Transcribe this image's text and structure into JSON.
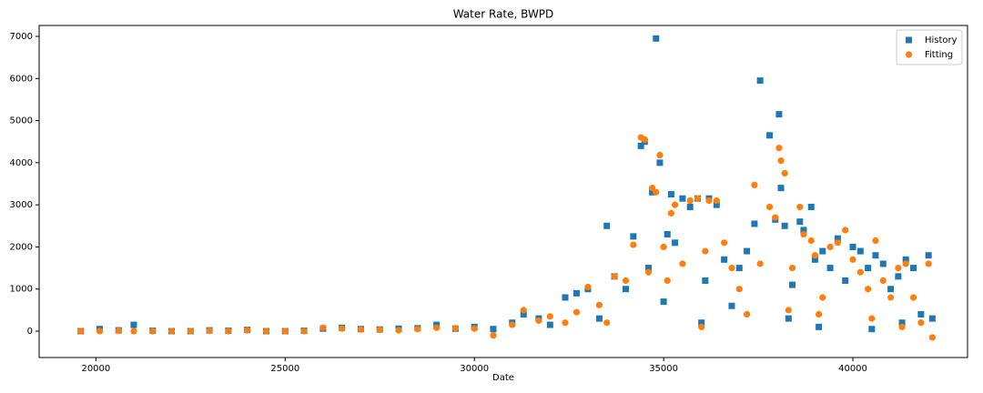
{
  "chart_data": {
    "type": "scatter",
    "title": "Water Rate, BWPD",
    "x_label": "Date",
    "x": [
      19600,
      20100,
      20600,
      21000,
      21500,
      22000,
      22500,
      23000,
      23500,
      24000,
      24500,
      25000,
      25500,
      26000,
      26500,
      27000,
      27500,
      28000,
      28500,
      29000,
      29500,
      30000,
      30500,
      31000,
      31300,
      31700,
      32000,
      32400,
      32700,
      33000,
      33300,
      33500,
      33700,
      34000,
      34200,
      34400,
      34500,
      34600,
      34700,
      34800,
      34900,
      35000,
      35100,
      35200,
      35300,
      35500,
      35700,
      35900,
      36000,
      36100,
      36200,
      36400,
      36600,
      36800,
      37000,
      37200,
      37400,
      37550,
      37800,
      37950,
      38050,
      38100,
      38200,
      38300,
      38400,
      38600,
      38700,
      38900,
      39000,
      39100,
      39200,
      39400,
      39600,
      39800,
      40000,
      40200,
      40400,
      40500,
      40600,
      40800,
      41000,
      41200,
      41300,
      41400,
      41600,
      41800,
      42000,
      42100
    ],
    "series": [
      {
        "name": "History",
        "color": "#1f77b4",
        "marker": "square",
        "values": [
          0,
          50,
          20,
          150,
          10,
          0,
          0,
          20,
          10,
          30,
          0,
          0,
          10,
          60,
          80,
          50,
          40,
          60,
          70,
          150,
          60,
          100,
          50,
          200,
          400,
          300,
          150,
          800,
          900,
          1000,
          300,
          2500,
          1300,
          1000,
          2250,
          4400,
          4500,
          1500,
          3300,
          6950,
          4000,
          700,
          2300,
          3250,
          2100,
          3150,
          2950,
          3150,
          200,
          1200,
          3150,
          3000,
          1700,
          600,
          1500,
          1900,
          2550,
          5950,
          4650,
          2650,
          5150,
          3400,
          2500,
          300,
          1100,
          2600,
          2400,
          2950,
          1700,
          100,
          1900,
          1500,
          2200,
          1200,
          2000,
          1900,
          1500,
          50,
          1800,
          1600,
          1000,
          1300,
          200,
          1700,
          1500,
          400,
          1800,
          300
        ]
      },
      {
        "name": "Fitting",
        "color": "#ff7f0e",
        "marker": "circle",
        "values": [
          0,
          0,
          10,
          0,
          0,
          0,
          0,
          10,
          0,
          20,
          0,
          0,
          0,
          80,
          60,
          40,
          30,
          20,
          50,
          80,
          70,
          60,
          -100,
          150,
          500,
          250,
          350,
          200,
          450,
          1050,
          620,
          200,
          1300,
          1200,
          2050,
          4600,
          4550,
          1400,
          3400,
          3300,
          4180,
          2000,
          1200,
          2800,
          3000,
          1600,
          3100,
          3150,
          100,
          1900,
          3100,
          3100,
          2100,
          1500,
          1000,
          400,
          3470,
          1600,
          2950,
          2700,
          4350,
          4050,
          3750,
          500,
          1500,
          2950,
          2300,
          2150,
          1800,
          400,
          800,
          2000,
          2100,
          2400,
          1700,
          1400,
          1000,
          300,
          2150,
          1200,
          800,
          1500,
          100,
          1600,
          800,
          200,
          1600,
          -150
        ]
      }
    ],
    "xlim": [
      18500,
      43030
    ],
    "xticks": [
      20000,
      25000,
      30000,
      35000,
      40000
    ],
    "ylim": [
      -626,
      7259
    ],
    "yticks": [
      0,
      1000,
      2000,
      3000,
      4000,
      5000,
      6000,
      7000
    ],
    "legend": "upper right"
  }
}
